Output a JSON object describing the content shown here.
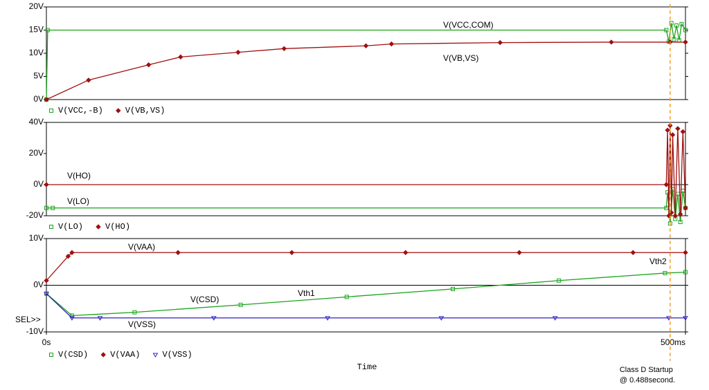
{
  "chart_data": [
    {
      "type": "line",
      "xlim": [
        0,
        500
      ],
      "ylim": [
        0,
        20
      ],
      "yticks": [
        {
          "value": 0,
          "label": "0V"
        },
        {
          "value": 5,
          "label": "5V"
        },
        {
          "value": 10,
          "label": "10V"
        },
        {
          "value": 15,
          "label": "15V"
        },
        {
          "value": 20,
          "label": "20V"
        }
      ],
      "series": [
        {
          "name": "V(VCC,-B)",
          "color": "#1aa31a",
          "marker": "square",
          "x": [
            0,
            1,
            485,
            487,
            489,
            491,
            493,
            495,
            497,
            500
          ],
          "values": [
            0,
            15,
            15,
            12.5,
            16.5,
            13,
            16,
            12.8,
            16.3,
            15
          ]
        },
        {
          "name": "V(VB,VS)",
          "color": "#a01010",
          "marker": "diamond",
          "x": [
            0,
            33,
            80,
            105,
            150,
            186,
            250,
            270,
            355,
            442,
            488,
            500
          ],
          "values": [
            0,
            4.2,
            7.5,
            9.2,
            10.2,
            11,
            11.6,
            12,
            12.3,
            12.4,
            12.4,
            12.4
          ]
        }
      ],
      "annotations": [
        "V(VCC,COM)",
        "V(VB,VS)"
      ]
    },
    {
      "type": "line",
      "xlim": [
        0,
        500
      ],
      "ylim": [
        -20,
        40
      ],
      "yticks": [
        {
          "value": -20,
          "label": "-20V"
        },
        {
          "value": 0,
          "label": "0V"
        },
        {
          "value": 20,
          "label": "20V"
        },
        {
          "value": 40,
          "label": "40V"
        }
      ],
      "series": [
        {
          "name": "V(LO)",
          "color": "#1aa31a",
          "marker": "square",
          "x": [
            0,
            5,
            485,
            486,
            488,
            490,
            492,
            494,
            496,
            498,
            500
          ],
          "values": [
            -15,
            -15,
            -15,
            -5,
            -25,
            -3,
            -22,
            -6,
            -24,
            -4,
            -15
          ]
        },
        {
          "name": "V(HO)",
          "color": "#a01010",
          "marker": "diamond",
          "x": [
            0,
            485,
            486,
            487,
            488,
            489,
            490,
            492,
            494,
            496,
            498,
            500
          ],
          "values": [
            0,
            0,
            35,
            -20,
            38,
            -18,
            32,
            -20,
            36,
            -19,
            34,
            -15
          ]
        }
      ],
      "annotations": [
        "V(HO)",
        "V(LO)"
      ]
    },
    {
      "type": "line",
      "xlim": [
        0,
        500
      ],
      "ylim": [
        -10,
        10
      ],
      "xticks": [
        {
          "value": 0,
          "label": "0s"
        },
        {
          "value": 500,
          "label": "500ms"
        }
      ],
      "xlabel": "Time",
      "yticks": [
        {
          "value": -10,
          "label": "-10V"
        },
        {
          "value": 0,
          "label": "0V"
        },
        {
          "value": 10,
          "label": "10V"
        }
      ],
      "series": [
        {
          "name": "V(CSD)",
          "color": "#1aa31a",
          "marker": "square",
          "x": [
            0,
            20,
            69,
            152,
            235,
            318,
            401,
            484,
            500
          ],
          "values": [
            -1.8,
            -6.5,
            -5.8,
            -4.2,
            -2.5,
            -0.8,
            1,
            2.6,
            2.8
          ]
        },
        {
          "name": "V(VAA)",
          "color": "#a01010",
          "marker": "diamond",
          "x": [
            0,
            17,
            20,
            103,
            192,
            281,
            370,
            459,
            500
          ],
          "values": [
            1,
            6.2,
            7,
            7,
            7,
            7,
            7,
            7,
            7
          ]
        },
        {
          "name": "V(VSS)",
          "color": "#3020c0",
          "marker": "triangle",
          "x": [
            0,
            20,
            42,
            131,
            220,
            309,
            398,
            487,
            500
          ],
          "values": [
            -1.8,
            -7,
            -7,
            -7,
            -7,
            -7,
            -7,
            -7,
            -7
          ]
        }
      ],
      "annotations": [
        "V(VAA)",
        "V(CSD)",
        "Vth1",
        "Vth2",
        "V(VSS)",
        "SEL>>"
      ]
    }
  ],
  "cursor": {
    "x": 488,
    "label": [
      "Class D Startup",
      "@ 0.488second."
    ]
  }
}
